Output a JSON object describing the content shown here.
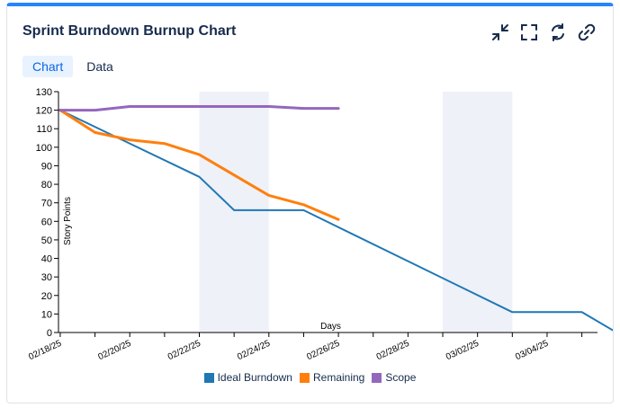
{
  "header": {
    "title": "Sprint Burndown Burnup Chart"
  },
  "toolbar": {
    "icons": [
      "collapse-icon",
      "fullscreen-icon",
      "refresh-icon",
      "link-icon"
    ]
  },
  "tabs": [
    {
      "label": "Chart"
    },
    {
      "label": "Data"
    }
  ],
  "colors": {
    "ideal": "#1f77b4",
    "remaining": "#ff7f0e",
    "scope": "#9467bd",
    "weekend": "#eef1f8",
    "accent": "#2684ff"
  },
  "chart_data": {
    "type": "line",
    "xlabel": "Days",
    "ylabel": "Story Points",
    "ylim": [
      0,
      130
    ],
    "xlim": [
      "02/18/25",
      "03/05/25"
    ],
    "x_ticks": [
      "02/18/25",
      "02/20/25",
      "02/22/25",
      "02/24/25",
      "02/26/25",
      "02/28/25",
      "03/02/25",
      "03/04/25"
    ],
    "y_ticks": [
      0,
      10,
      20,
      30,
      40,
      50,
      60,
      70,
      80,
      90,
      100,
      110,
      120,
      130
    ],
    "weekends": [
      [
        "02/22/25",
        "02/24/25"
      ],
      [
        "03/01/25",
        "03/03/25"
      ]
    ],
    "series": [
      {
        "name": "Ideal Burndown",
        "points": [
          [
            "02/18/25",
            120
          ],
          [
            "02/22/25",
            84
          ],
          [
            "02/23/25",
            66
          ],
          [
            "02/25/25",
            66
          ],
          [
            "03/03/25",
            11
          ],
          [
            "03/05/25",
            11
          ],
          [
            "03/06/25",
            0
          ]
        ]
      },
      {
        "name": "Remaining",
        "points": [
          [
            "02/18/25",
            120
          ],
          [
            "02/19/25",
            108
          ],
          [
            "02/20/25",
            104
          ],
          [
            "02/21/25",
            102
          ],
          [
            "02/22/25",
            96
          ],
          [
            "02/23/25",
            85
          ],
          [
            "02/24/25",
            74
          ],
          [
            "02/25/25",
            69
          ],
          [
            "02/26/25",
            61
          ]
        ]
      },
      {
        "name": "Scope",
        "points": [
          [
            "02/18/25",
            120
          ],
          [
            "02/19/25",
            120
          ],
          [
            "02/20/25",
            122
          ],
          [
            "02/21/25",
            122
          ],
          [
            "02/22/25",
            122
          ],
          [
            "02/23/25",
            122
          ],
          [
            "02/24/25",
            122
          ],
          [
            "02/25/25",
            121
          ],
          [
            "02/26/25",
            121
          ]
        ]
      }
    ],
    "legend": "bottom"
  }
}
